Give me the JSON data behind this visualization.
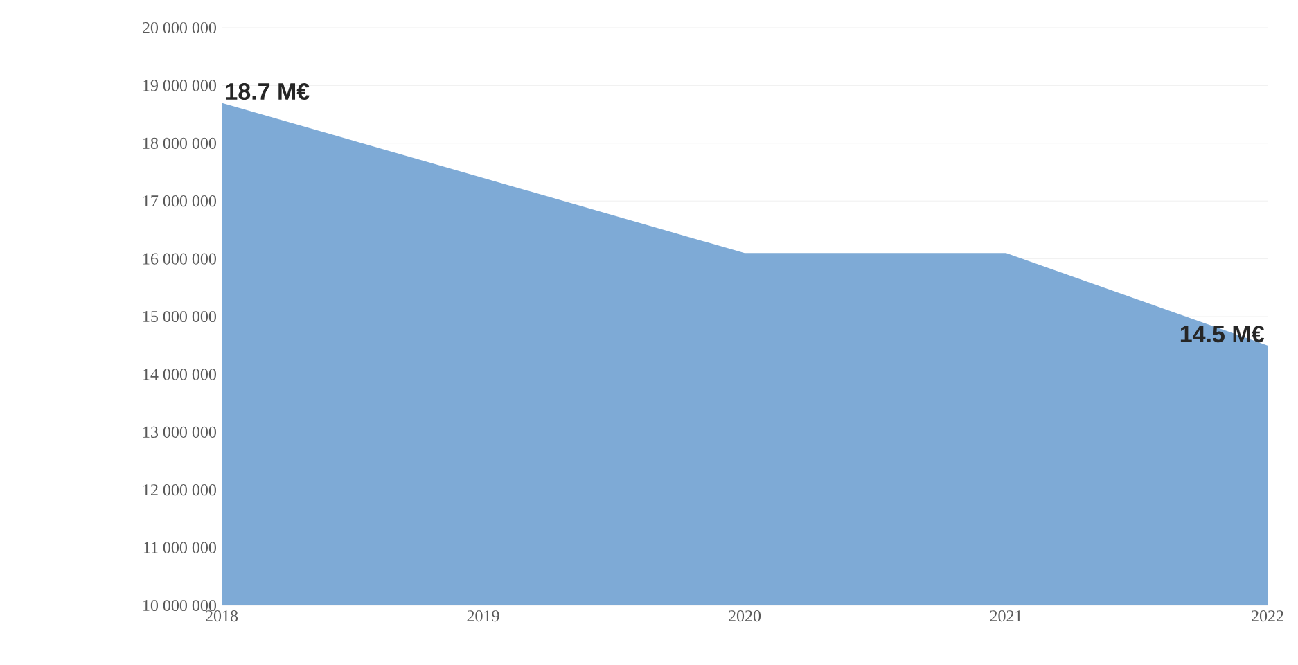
{
  "chart_data": {
    "type": "area",
    "categories": [
      "2018",
      "2019",
      "2020",
      "2021",
      "2022"
    ],
    "values": [
      18700000,
      17400000,
      16100000,
      16100000,
      14500000
    ],
    "value_labels": [
      "18.7 M€",
      null,
      null,
      null,
      "14.5 M€"
    ],
    "color": "#7eaad6",
    "ylim": [
      10000000,
      20000000
    ],
    "yticks": [
      {
        "value": 10000000,
        "label": "10 000 000"
      },
      {
        "value": 11000000,
        "label": "11 000 000"
      },
      {
        "value": 12000000,
        "label": "12 000 000"
      },
      {
        "value": 13000000,
        "label": "13 000 000"
      },
      {
        "value": 14000000,
        "label": "14 000 000"
      },
      {
        "value": 15000000,
        "label": "15 000 000"
      },
      {
        "value": 16000000,
        "label": "16 000 000"
      },
      {
        "value": 17000000,
        "label": "17 000 000"
      },
      {
        "value": 18000000,
        "label": "18 000 000"
      },
      {
        "value": 19000000,
        "label": "19 000 000"
      },
      {
        "value": 20000000,
        "label": "20 000 000"
      }
    ],
    "grid": "y"
  }
}
